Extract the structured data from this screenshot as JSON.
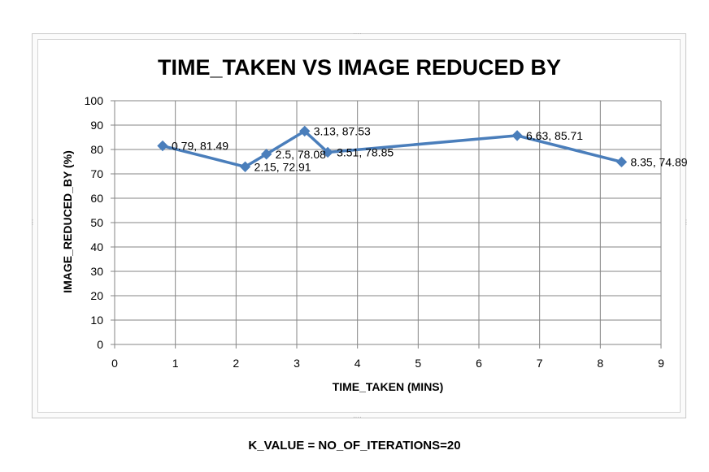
{
  "chart_data": {
    "type": "scatter",
    "title": "TIME_TAKEN  VS IMAGE REDUCED BY",
    "xlabel": "TIME_TAKEN (MINS)",
    "ylabel": "IMAGE_REDUCED_BY  (%)",
    "xlim": [
      0,
      9
    ],
    "ylim": [
      0,
      100
    ],
    "x_ticks": [
      "0",
      "1",
      "2",
      "3",
      "4",
      "5",
      "6",
      "7",
      "8",
      "9"
    ],
    "y_ticks": [
      "0",
      "10",
      "20",
      "30",
      "40",
      "50",
      "60",
      "70",
      "80",
      "90",
      "100"
    ],
    "grid": true,
    "legend": "none",
    "series": [
      {
        "color": "#4A7EBB",
        "marker": "diamond",
        "points": [
          {
            "x": 0.79,
            "y": 81.49,
            "label": "0.79, 81.49"
          },
          {
            "x": 2.15,
            "y": 72.91,
            "label": "2.15, 72.91"
          },
          {
            "x": 2.5,
            "y": 78.08,
            "label": "2.5, 78.08"
          },
          {
            "x": 3.13,
            "y": 87.53,
            "label": "3.13, 87.53"
          },
          {
            "x": 3.51,
            "y": 78.85,
            "label": "3.51, 78.85"
          },
          {
            "x": 6.63,
            "y": 85.71,
            "label": "6.63, 85.71"
          },
          {
            "x": 8.35,
            "y": 74.89,
            "label": "8.35, 74.89"
          }
        ]
      }
    ]
  },
  "caption": "K_VALUE = NO_OF_ITERATIONS=20"
}
